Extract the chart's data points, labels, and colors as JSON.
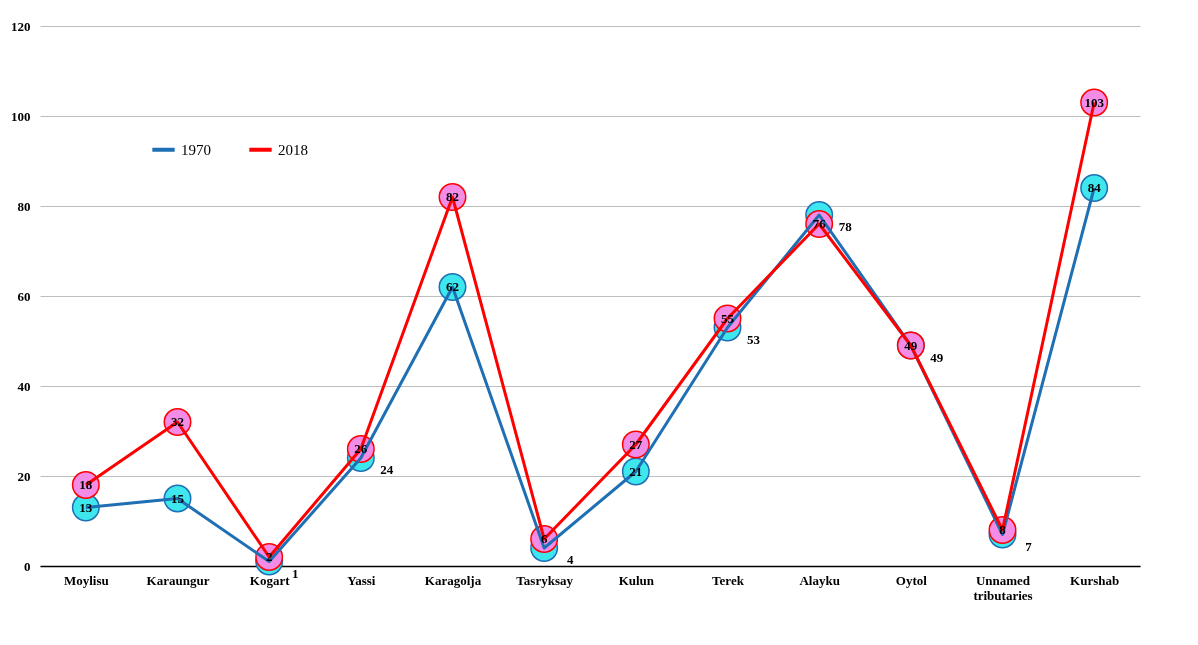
{
  "chart_data": {
    "type": "line",
    "categories": [
      "Moylisu",
      "Karaungur",
      "Kogart",
      "Yassi",
      "Karagolja",
      "Tasryksay",
      "Kulun",
      "Terek",
      "Alayku",
      "Oytol",
      "Unnamed tributaries",
      "Kurshab"
    ],
    "series": [
      {
        "name": "1970",
        "color": "#1f6fb5",
        "values": [
          13,
          15,
          1,
          24,
          62,
          4,
          21,
          53,
          78,
          49,
          7,
          84
        ]
      },
      {
        "name": "2018",
        "color": "#ff0000",
        "values": [
          18,
          32,
          2,
          26,
          82,
          6,
          27,
          55,
          76,
          49,
          8,
          103
        ]
      }
    ],
    "ylim": [
      0,
      120
    ],
    "yticks": [
      0,
      20,
      40,
      60,
      80,
      100,
      120
    ],
    "grid": "y",
    "legend": "top left",
    "marker": "circle",
    "data_labels": true
  }
}
